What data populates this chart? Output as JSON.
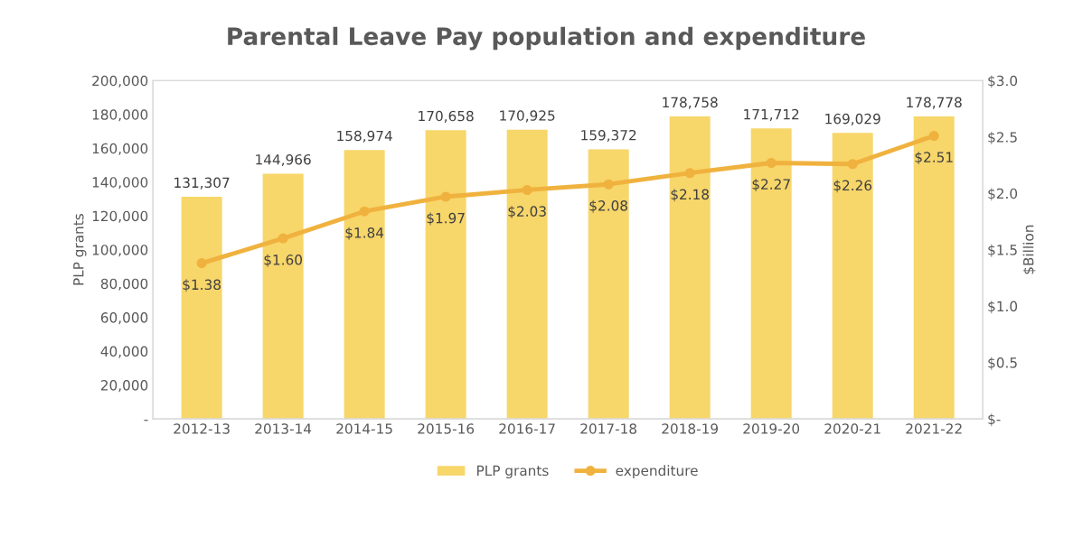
{
  "chart_data": {
    "type": "bar",
    "title": "Parental Leave Pay population and expenditure",
    "categories": [
      "2012-13",
      "2013-14",
      "2014-15",
      "2015-16",
      "2016-17",
      "2017-18",
      "2018-19",
      "2019-20",
      "2020-21",
      "2021-22"
    ],
    "ylabel": "PLP grants",
    "y2label": "$Billion",
    "ylim": [
      0,
      200000
    ],
    "yticks": [
      {
        "value": 0,
        "label": "-"
      },
      {
        "value": 20000,
        "label": "20,000"
      },
      {
        "value": 40000,
        "label": "40,000"
      },
      {
        "value": 60000,
        "label": "60,000"
      },
      {
        "value": 80000,
        "label": "80,000"
      },
      {
        "value": 100000,
        "label": "100,000"
      },
      {
        "value": 120000,
        "label": "120,000"
      },
      {
        "value": 140000,
        "label": "140,000"
      },
      {
        "value": 160000,
        "label": "160,000"
      },
      {
        "value": 180000,
        "label": "180,000"
      },
      {
        "value": 200000,
        "label": "200,000"
      }
    ],
    "y2lim": [
      0,
      3.0
    ],
    "y2ticks": [
      {
        "value": 0,
        "label": "$-"
      },
      {
        "value": 0.5,
        "label": "$0.5"
      },
      {
        "value": 1.0,
        "label": "$1.0"
      },
      {
        "value": 1.5,
        "label": "$1.5"
      },
      {
        "value": 2.0,
        "label": "$2.0"
      },
      {
        "value": 2.5,
        "label": "$2.5"
      },
      {
        "value": 3.0,
        "label": "$3.0"
      }
    ],
    "series": [
      {
        "name": "PLP grants",
        "color": "#f7d66a",
        "values": [
          131307,
          144966,
          158974,
          170658,
          170925,
          159372,
          178758,
          171712,
          169029,
          178778
        ],
        "value_labels": [
          "131,307",
          "144,966",
          "158,974",
          "170,658",
          "170,925",
          "159,372",
          "178,758",
          "171,712",
          "169,029",
          "178,778"
        ]
      },
      {
        "name": "expenditure",
        "type": "line",
        "axis": "y2",
        "color": "#f0b23e",
        "marker": "circle",
        "values": [
          1.38,
          1.6,
          1.84,
          1.97,
          2.03,
          2.08,
          2.18,
          2.27,
          2.26,
          2.51
        ],
        "value_labels": [
          "$1.38",
          "$1.60",
          "$1.84",
          "$1.97",
          "$2.03",
          "$2.08",
          "$2.18",
          "$2.27",
          "$2.26",
          "$2.51"
        ]
      }
    ],
    "legend": "bottom",
    "grid": false
  }
}
